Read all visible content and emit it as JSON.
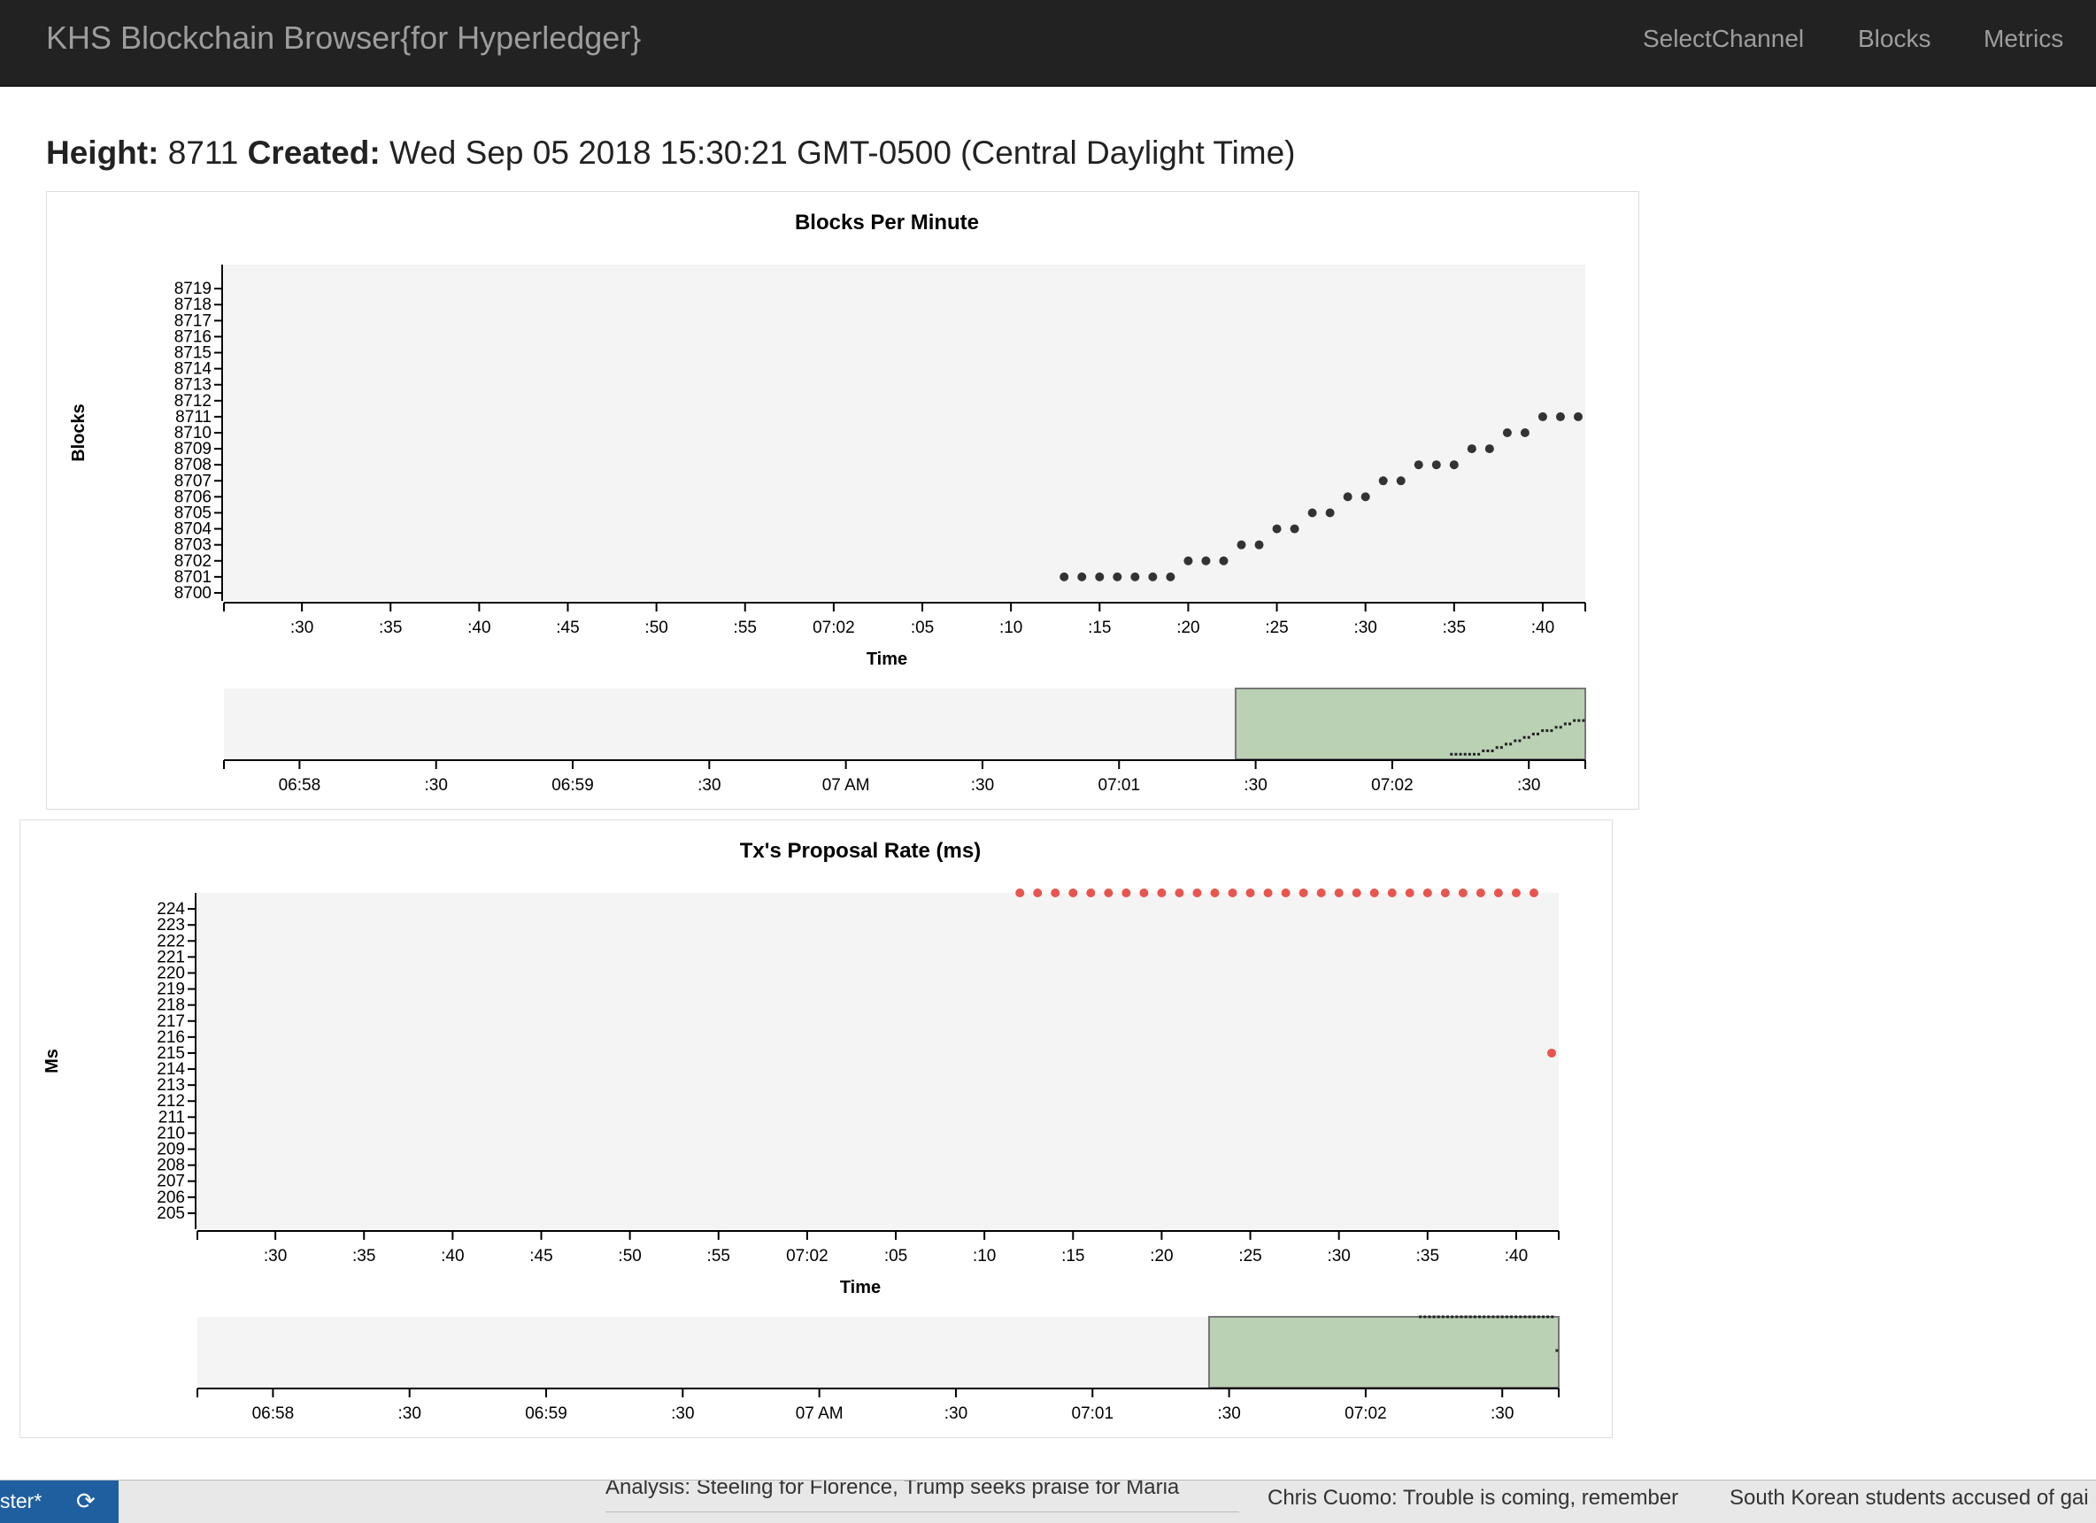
{
  "navbar": {
    "brand": "KHS Blockchain Browser{for Hyperledger}",
    "links": [
      "SelectChannel",
      "Blocks",
      "Metrics"
    ]
  },
  "status": {
    "height_label": "Height:",
    "height_value": "8711",
    "created_label": "Created:",
    "created_value": "Wed Sep 05 2018 15:30:21 GMT-0500 (Central Daylight Time)"
  },
  "chart_data": [
    {
      "type": "scatter",
      "title": "Blocks Per Minute",
      "xlabel": "Time",
      "ylabel": "Blocks",
      "color": "#333333",
      "xlim": [
        "07:01:25.6",
        "07:02:42.4"
      ],
      "ylim": [
        8699.5,
        8720.5
      ],
      "yticks": [
        8700,
        8701,
        8702,
        8703,
        8704,
        8705,
        8706,
        8707,
        8708,
        8709,
        8710,
        8711,
        8712,
        8713,
        8714,
        8715,
        8716,
        8717,
        8718,
        8719
      ],
      "xticks": [
        ":30",
        ":35",
        ":40",
        ":45",
        ":50",
        ":55",
        "07:02",
        ":05",
        ":10",
        ":15",
        ":20",
        ":25",
        ":30",
        ":35",
        ":40"
      ],
      "context": {
        "xticks": [
          "06:58",
          ":30",
          "06:59",
          ":30",
          "07 AM",
          ":30",
          "07:01",
          ":30",
          "07:02",
          ":30"
        ],
        "brush_color": "#bad1b4"
      },
      "series": [
        {
          "x": [
            "07:02:13",
            "07:02:14",
            "07:02:15",
            "07:02:16",
            "07:02:17",
            "07:02:18",
            "07:02:19",
            "07:02:20",
            "07:02:21",
            "07:02:22",
            "07:02:23",
            "07:02:24",
            "07:02:25",
            "07:02:26",
            "07:02:27",
            "07:02:28",
            "07:02:29",
            "07:02:30",
            "07:02:31",
            "07:02:32",
            "07:02:33",
            "07:02:34",
            "07:02:35",
            "07:02:36",
            "07:02:37",
            "07:02:38",
            "07:02:39",
            "07:02:40",
            "07:02:41",
            "07:02:42"
          ],
          "y": [
            8701,
            8701,
            8701,
            8701,
            8701,
            8701,
            8701,
            8702,
            8702,
            8702,
            8703,
            8703,
            8704,
            8704,
            8705,
            8705,
            8706,
            8706,
            8707,
            8707,
            8708,
            8708,
            8708,
            8709,
            8709,
            8710,
            8710,
            8711,
            8711,
            8711
          ]
        }
      ]
    },
    {
      "type": "scatter",
      "title": "Tx's Proposal Rate (ms)",
      "xlabel": "Time",
      "ylabel": "Ms",
      "color": "#e8554f",
      "xlim": [
        "07:01:25.6",
        "07:02:42.4"
      ],
      "ylim": [
        204,
        225
      ],
      "yticks": [
        205,
        206,
        207,
        208,
        209,
        210,
        211,
        212,
        213,
        214,
        215,
        216,
        217,
        218,
        219,
        220,
        221,
        222,
        223,
        224
      ],
      "xticks": [
        ":30",
        ":35",
        ":40",
        ":45",
        ":50",
        ":55",
        "07:02",
        ":05",
        ":10",
        ":15",
        ":20",
        ":25",
        ":30",
        ":35",
        ":40"
      ],
      "context": {
        "xticks": [
          "06:58",
          ":30",
          "06:59",
          ":30",
          "07 AM",
          ":30",
          "07:01",
          ":30",
          "07:02",
          ":30"
        ],
        "brush_color": "#bad1b4"
      },
      "series": [
        {
          "x": [
            "07:02:12",
            "07:02:13",
            "07:02:14",
            "07:02:15",
            "07:02:16",
            "07:02:17",
            "07:02:18",
            "07:02:19",
            "07:02:20",
            "07:02:21",
            "07:02:22",
            "07:02:23",
            "07:02:24",
            "07:02:25",
            "07:02:26",
            "07:02:27",
            "07:02:28",
            "07:02:29",
            "07:02:30",
            "07:02:31",
            "07:02:32",
            "07:02:33",
            "07:02:34",
            "07:02:35",
            "07:02:36",
            "07:02:37",
            "07:02:38",
            "07:02:39",
            "07:02:40",
            "07:02:41",
            "07:02:42"
          ],
          "y": [
            225,
            225,
            225,
            225,
            225,
            225,
            225,
            225,
            225,
            225,
            225,
            225,
            225,
            225,
            225,
            225,
            225,
            225,
            225,
            225,
            225,
            225,
            225,
            225,
            225,
            225,
            225,
            225,
            225,
            225,
            215
          ]
        }
      ]
    }
  ],
  "taskbar": {
    "item_label": "ster*",
    "refresh_icon": "refresh-icon"
  },
  "news": {
    "items": [
      "Analysis: Steeling for Florence, Trump seeks praise for Maria",
      "Chris Cuomo: Trouble is coming, remember",
      "South Korean students accused of gai"
    ]
  }
}
